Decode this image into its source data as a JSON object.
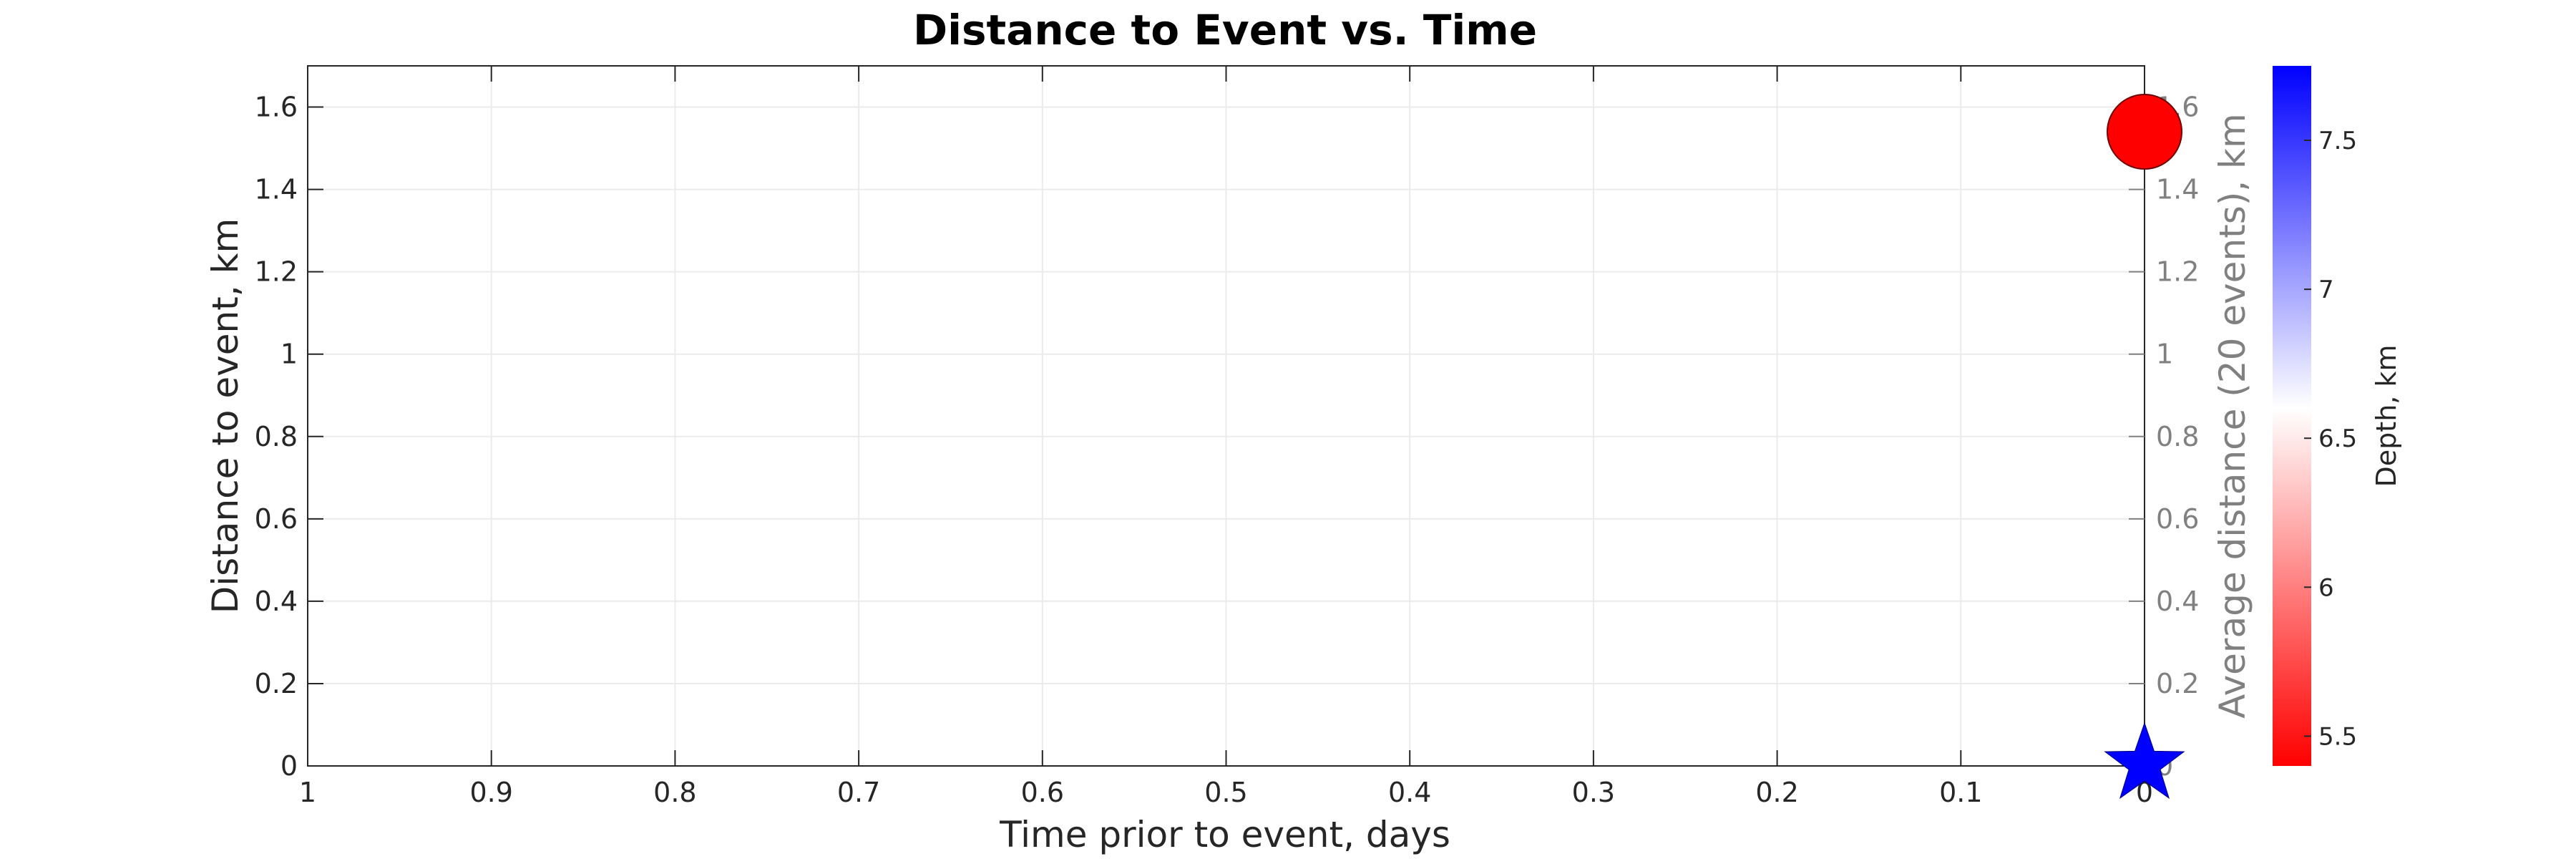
{
  "chart_data": {
    "type": "scatter",
    "title": "Distance to Event vs. Time",
    "xlabel": "Time prior to event, days",
    "ylabel": "Distance to event, km",
    "y2label": "Average distance (20 events), km",
    "xlim": [
      1,
      0
    ],
    "x_reversed": true,
    "ylim": [
      0,
      1.7
    ],
    "xticks": [
      1,
      0.9,
      0.8,
      0.7,
      0.6,
      0.5,
      0.4,
      0.3,
      0.2,
      0.1,
      0
    ],
    "xtick_labels": [
      "1",
      "0.9",
      "0.8",
      "0.7",
      "0.6",
      "0.5",
      "0.4",
      "0.3",
      "0.2",
      "0.1",
      "0"
    ],
    "yticks": [
      0,
      0.2,
      0.4,
      0.6,
      0.8,
      1,
      1.2,
      1.4,
      1.6
    ],
    "ytick_labels": [
      "0",
      "0.2",
      "0.4",
      "0.6",
      "0.8",
      "1",
      "1.2",
      "1.4",
      "1.6"
    ],
    "grid": true,
    "points": [
      {
        "x": 0,
        "y": 1.54,
        "marker": "circle",
        "color": "#ff0000"
      }
    ],
    "main_event": {
      "x": 0,
      "y": 0,
      "marker": "star",
      "color": "#0000ff"
    },
    "colorbar": {
      "label": "Depth, km",
      "range": [
        5.4,
        7.75
      ],
      "ticks": [
        5.5,
        6,
        6.5,
        7,
        7.5
      ],
      "tick_labels": [
        "5.5",
        "6",
        "6.5",
        "7",
        "7.5"
      ],
      "colors": {
        "low": "#ff0000",
        "mid": "#ffffff",
        "high": "#0000ff"
      },
      "mid_value": 6.6
    }
  }
}
